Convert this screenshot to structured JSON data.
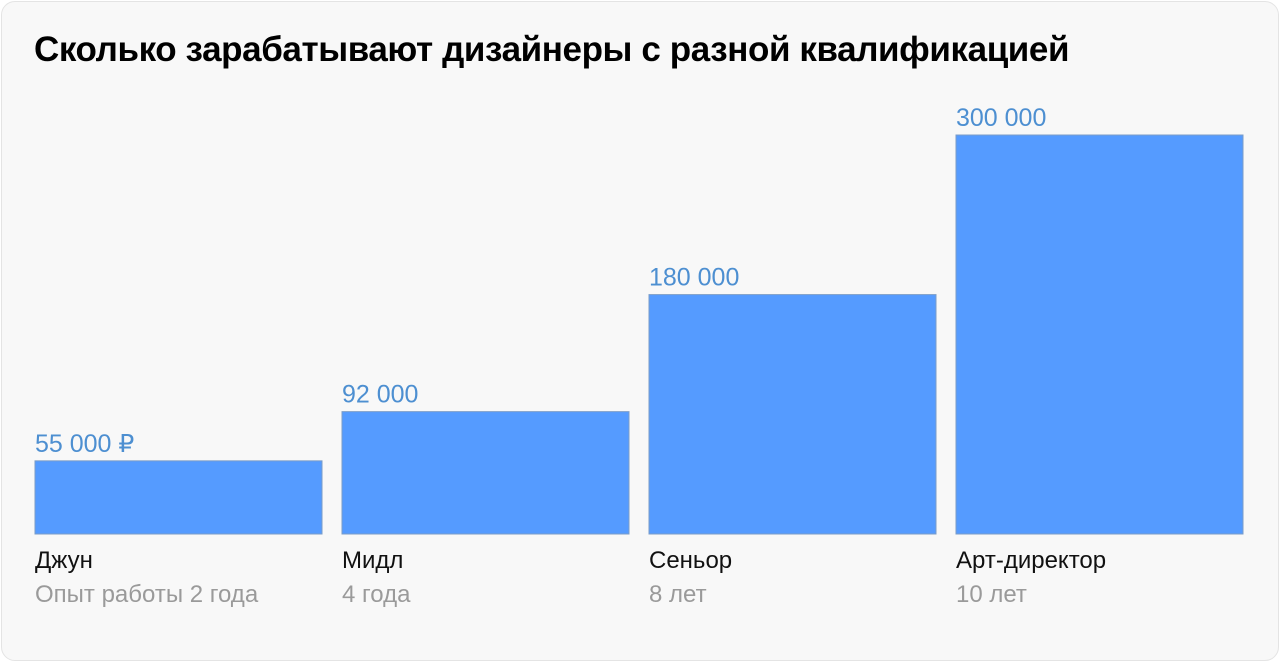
{
  "title": "Сколько зарабатывают дизайнеры с разной квалификацией",
  "colors": {
    "bar": "#559bff",
    "value_label": "#4d8fd1",
    "background": "#f8f8f8"
  },
  "chart_data": {
    "type": "bar",
    "title": "Сколько зарабатывают дизайнеры с разной квалификацией",
    "categories": [
      "Джун",
      "Мидл",
      "Сеньор",
      "Арт-директор"
    ],
    "subtitles": [
      "Опыт работы 2 года",
      "4 года",
      "8 лет",
      "10 лет"
    ],
    "values": [
      55000,
      92000,
      180000,
      300000
    ],
    "value_labels": [
      "55 000 ₽",
      "92 000",
      "180 000",
      "300 000"
    ],
    "ylim": [
      0,
      300000
    ],
    "grid": false,
    "legend": "none"
  }
}
